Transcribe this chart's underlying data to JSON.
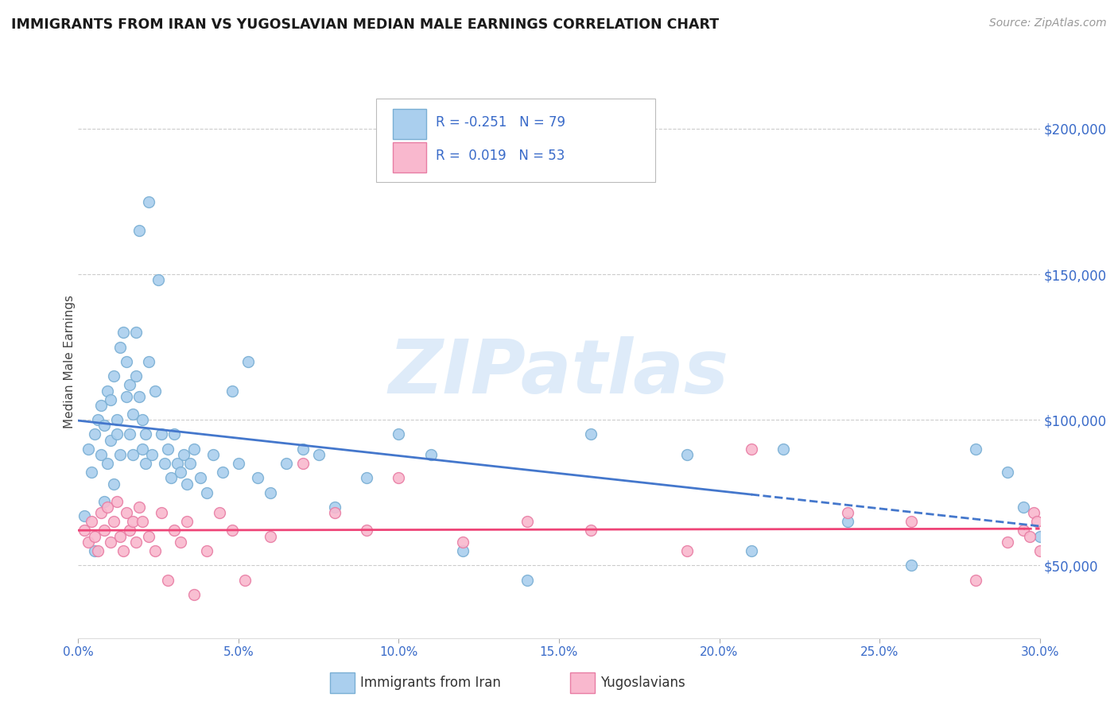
{
  "title": "IMMIGRANTS FROM IRAN VS YUGOSLAVIAN MEDIAN MALE EARNINGS CORRELATION CHART",
  "source": "Source: ZipAtlas.com",
  "ylabel": "Median Male Earnings",
  "xlim": [
    0.0,
    0.3
  ],
  "ylim": [
    25000,
    215000
  ],
  "yticks": [
    50000,
    100000,
    150000,
    200000
  ],
  "xticks": [
    0.0,
    0.05,
    0.1,
    0.15,
    0.2,
    0.25,
    0.3
  ],
  "xtick_labels": [
    "0.0%",
    "5.0%",
    "10.0%",
    "15.0%",
    "20.0%",
    "25.0%",
    "30.0%"
  ],
  "ytick_labels": [
    "$50,000",
    "$100,000",
    "$150,000",
    "$200,000"
  ],
  "iran_color": "#aacfee",
  "iran_edge_color": "#7aafd4",
  "yugo_color": "#f9b8ce",
  "yugo_edge_color": "#e87da4",
  "trend_iran_color": "#4477cc",
  "trend_yugo_color": "#ee4477",
  "iran_x": [
    0.002,
    0.003,
    0.004,
    0.005,
    0.005,
    0.006,
    0.007,
    0.007,
    0.008,
    0.008,
    0.009,
    0.009,
    0.01,
    0.01,
    0.011,
    0.011,
    0.012,
    0.012,
    0.013,
    0.013,
    0.014,
    0.015,
    0.015,
    0.016,
    0.016,
    0.017,
    0.017,
    0.018,
    0.018,
    0.019,
    0.019,
    0.02,
    0.02,
    0.021,
    0.021,
    0.022,
    0.022,
    0.023,
    0.024,
    0.025,
    0.026,
    0.027,
    0.028,
    0.029,
    0.03,
    0.031,
    0.032,
    0.033,
    0.034,
    0.035,
    0.036,
    0.038,
    0.04,
    0.042,
    0.045,
    0.048,
    0.05,
    0.053,
    0.056,
    0.06,
    0.065,
    0.07,
    0.075,
    0.08,
    0.09,
    0.1,
    0.11,
    0.12,
    0.14,
    0.16,
    0.19,
    0.21,
    0.22,
    0.24,
    0.26,
    0.28,
    0.29,
    0.295,
    0.3
  ],
  "iran_y": [
    67000,
    90000,
    82000,
    55000,
    95000,
    100000,
    88000,
    105000,
    72000,
    98000,
    85000,
    110000,
    93000,
    107000,
    78000,
    115000,
    100000,
    95000,
    88000,
    125000,
    130000,
    108000,
    120000,
    95000,
    112000,
    88000,
    102000,
    130000,
    115000,
    165000,
    108000,
    90000,
    100000,
    85000,
    95000,
    120000,
    175000,
    88000,
    110000,
    148000,
    95000,
    85000,
    90000,
    80000,
    95000,
    85000,
    82000,
    88000,
    78000,
    85000,
    90000,
    80000,
    75000,
    88000,
    82000,
    110000,
    85000,
    120000,
    80000,
    75000,
    85000,
    90000,
    88000,
    70000,
    80000,
    95000,
    88000,
    55000,
    45000,
    95000,
    88000,
    55000,
    90000,
    65000,
    50000,
    90000,
    82000,
    70000,
    60000
  ],
  "yugo_x": [
    0.002,
    0.003,
    0.004,
    0.005,
    0.006,
    0.007,
    0.008,
    0.009,
    0.01,
    0.011,
    0.012,
    0.013,
    0.014,
    0.015,
    0.016,
    0.017,
    0.018,
    0.019,
    0.02,
    0.022,
    0.024,
    0.026,
    0.028,
    0.03,
    0.032,
    0.034,
    0.036,
    0.04,
    0.044,
    0.048,
    0.052,
    0.06,
    0.07,
    0.08,
    0.09,
    0.1,
    0.12,
    0.14,
    0.16,
    0.19,
    0.21,
    0.24,
    0.26,
    0.28,
    0.29,
    0.295,
    0.297,
    0.298,
    0.299,
    0.3,
    0.302,
    0.305,
    0.308
  ],
  "yugo_y": [
    62000,
    58000,
    65000,
    60000,
    55000,
    68000,
    62000,
    70000,
    58000,
    65000,
    72000,
    60000,
    55000,
    68000,
    62000,
    65000,
    58000,
    70000,
    65000,
    60000,
    55000,
    68000,
    45000,
    62000,
    58000,
    65000,
    40000,
    55000,
    68000,
    62000,
    45000,
    60000,
    85000,
    68000,
    62000,
    80000,
    58000,
    65000,
    62000,
    55000,
    90000,
    68000,
    65000,
    45000,
    58000,
    62000,
    60000,
    68000,
    65000,
    55000,
    62000,
    55000,
    68000
  ],
  "watermark": "ZIPatlas",
  "watermark_color": "#c8dff5",
  "bg_color": "#ffffff",
  "grid_color": "#cccccc"
}
